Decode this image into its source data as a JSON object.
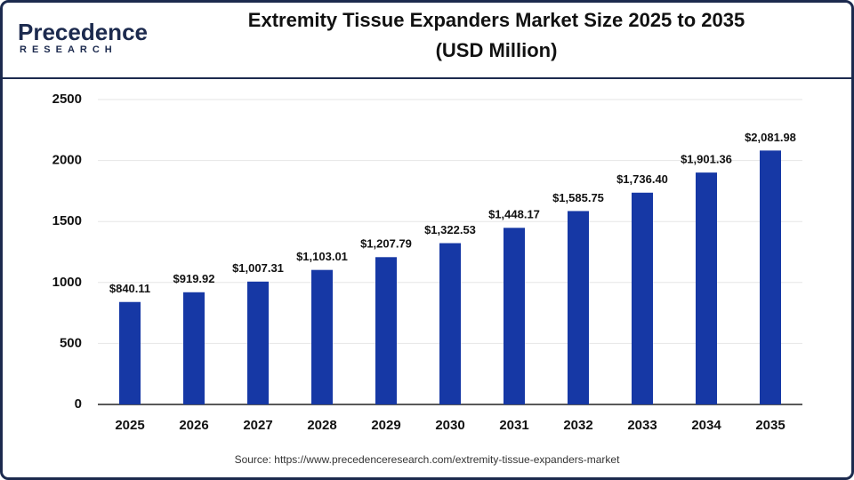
{
  "logo": {
    "name": "Precedence",
    "tagline": "RESEARCH"
  },
  "chart_data": {
    "type": "bar",
    "title": "Extremity Tissue Expanders Market Size 2025 to 2035",
    "subtitle": "(USD Million)",
    "source": "Source: https://www.precedenceresearch.com/extremity-tissue-expanders-market",
    "categories": [
      "2025",
      "2026",
      "2027",
      "2028",
      "2029",
      "2030",
      "2031",
      "2032",
      "2033",
      "2034",
      "2035"
    ],
    "values": [
      840.11,
      919.92,
      1007.31,
      1103.01,
      1207.79,
      1322.53,
      1448.17,
      1585.75,
      1736.4,
      1901.36,
      2081.98
    ],
    "value_labels": [
      "$840.11",
      "$919.92",
      "$1,007.31",
      "$1,103.01",
      "$1,207.79",
      "$1,322.53",
      "$1,448.17",
      "$1,585.75",
      "$1,736.40",
      "$1,901.36",
      "$2,081.98"
    ],
    "color": "#1638a5",
    "ylim": [
      0,
      2500
    ],
    "yticks": [
      0,
      500,
      1000,
      1500,
      2000,
      2500
    ],
    "grid": true
  }
}
